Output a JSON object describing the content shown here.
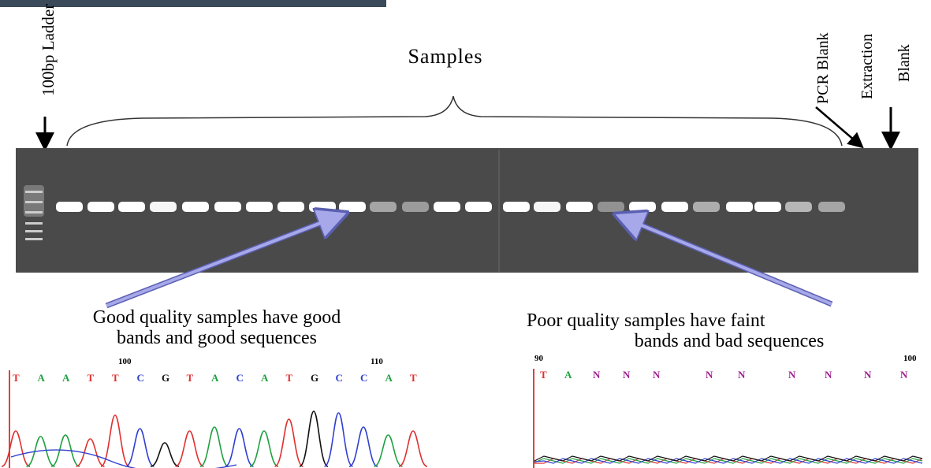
{
  "labels": {
    "ladder": "100bp Ladder",
    "samples": "Samples",
    "pcr_blank": "PCR Blank",
    "extraction": "Extraction",
    "blank": "Blank"
  },
  "good": {
    "caption": [
      "Good quality samples have good",
      "bands and good sequences"
    ],
    "positions": [
      "100",
      "110"
    ],
    "bases": [
      "T",
      "A",
      "A",
      "T",
      "T",
      "C",
      "G",
      "T",
      "A",
      "C",
      "A",
      "T",
      "G",
      "C",
      "C",
      "A",
      "T"
    ]
  },
  "poor": {
    "caption": [
      "Poor quality samples have faint",
      "bands and bad sequences"
    ],
    "positions": [
      "90",
      "100"
    ],
    "bases": [
      "T",
      "A",
      "N",
      "N",
      "N",
      "N",
      "N",
      "N",
      "N",
      "N",
      "N"
    ]
  }
}
